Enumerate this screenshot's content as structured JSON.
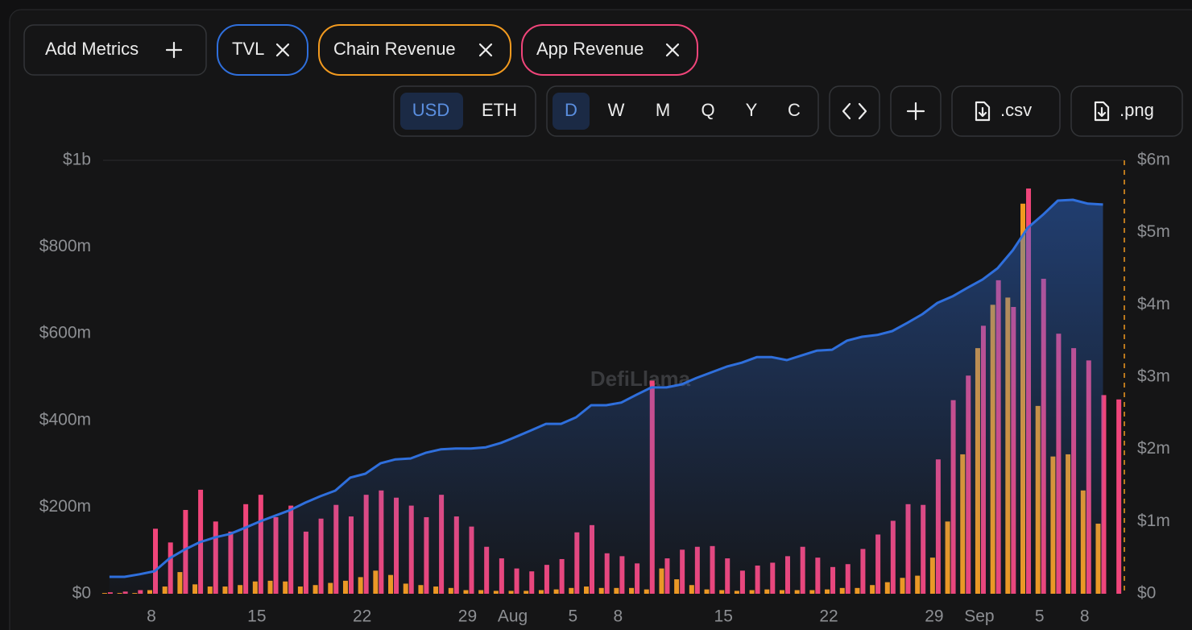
{
  "controls": {
    "add_metrics": "Add Metrics",
    "currency": [
      "USD",
      "ETH"
    ],
    "periods": [
      "D",
      "W",
      "M",
      "Q",
      "Y",
      "C"
    ],
    "downloads": [
      ".csv",
      ".png"
    ]
  },
  "chart_data": {
    "type": "bar-line",
    "watermark": "DefiLlama",
    "categories": [
      null,
      null,
      null,
      "8",
      null,
      null,
      null,
      null,
      null,
      null,
      "15",
      null,
      null,
      null,
      null,
      null,
      null,
      "22",
      null,
      null,
      null,
      null,
      null,
      null,
      "29",
      null,
      null,
      "Aug",
      null,
      null,
      null,
      "5",
      null,
      null,
      "8",
      null,
      null,
      null,
      null,
      null,
      null,
      "15",
      null,
      null,
      null,
      null,
      null,
      null,
      "22",
      null,
      null,
      null,
      null,
      null,
      null,
      "29",
      null,
      null,
      "Sep",
      null,
      null,
      null,
      "5",
      null,
      null,
      "8",
      null,
      null
    ],
    "series": [
      {
        "name": "TVL",
        "color": "#2f6fdc",
        "kind": "area",
        "values": [
          39,
          39,
          45,
          52,
          82,
          102,
          119,
          130,
          138,
          152,
          167,
          180,
          193,
          210,
          225,
          238,
          268,
          277,
          301,
          310,
          312,
          325,
          333,
          335,
          335,
          338,
          348,
          362,
          377,
          392,
          392,
          407,
          435,
          435,
          441,
          459,
          476,
          476,
          483,
          498,
          511,
          524,
          533,
          546,
          546,
          539,
          550,
          561,
          563,
          584,
          593,
          597,
          606,
          625,
          645,
          671,
          686,
          706,
          725,
          751,
          792,
          844,
          874,
          907,
          909,
          900,
          898,
          null
        ]
      },
      {
        "name": "Chain Revenue",
        "color": "#f29a1f",
        "kind": "bar",
        "axis": "y2",
        "values": [
          0.01,
          0.01,
          0.01,
          0.05,
          0.1,
          0.3,
          0.13,
          0.1,
          0.1,
          0.12,
          0.17,
          0.18,
          0.17,
          0.1,
          0.12,
          0.15,
          0.18,
          0.23,
          0.32,
          0.26,
          0.14,
          0.12,
          0.1,
          0.08,
          0.05,
          0.05,
          0.04,
          0.04,
          0.04,
          0.05,
          0.06,
          0.08,
          0.1,
          0.08,
          0.08,
          0.08,
          0.06,
          0.35,
          0.2,
          0.12,
          0.06,
          0.05,
          0.04,
          0.05,
          0.06,
          0.05,
          0.05,
          0.05,
          0.06,
          0.08,
          0.08,
          0.12,
          0.16,
          0.22,
          0.25,
          0.5,
          1.0,
          1.93,
          3.4,
          4.0,
          4.1,
          5.4,
          2.6,
          1.9,
          1.93,
          1.43,
          0.97,
          null
        ]
      },
      {
        "name": "App Revenue",
        "color": "#f0457a",
        "kind": "bar",
        "axis": "y2",
        "values": [
          0.02,
          0.03,
          0.05,
          0.9,
          0.71,
          1.16,
          1.44,
          1.0,
          0.86,
          1.24,
          1.37,
          1.06,
          1.22,
          0.86,
          1.04,
          1.23,
          1.07,
          1.37,
          1.43,
          1.33,
          1.22,
          1.06,
          1.37,
          1.07,
          0.93,
          0.65,
          0.49,
          0.35,
          0.31,
          0.4,
          0.48,
          0.85,
          0.95,
          0.56,
          0.52,
          0.42,
          2.95,
          0.49,
          0.61,
          0.65,
          0.66,
          0.49,
          0.32,
          0.39,
          0.43,
          0.52,
          0.65,
          0.5,
          0.37,
          0.41,
          0.62,
          0.82,
          1.01,
          1.24,
          1.23,
          1.86,
          2.68,
          3.02,
          3.71,
          4.34,
          3.97,
          5.61,
          4.36,
          3.6,
          3.4,
          3.23,
          2.75,
          2.69
        ]
      }
    ],
    "ylim": [
      0,
      1000
    ],
    "yticks": [
      {
        "value": 0,
        "label": "$0"
      },
      {
        "value": 200,
        "label": "$200m"
      },
      {
        "value": 400,
        "label": "$400m"
      },
      {
        "value": 600,
        "label": "$600m"
      },
      {
        "value": 800,
        "label": "$800m"
      },
      {
        "value": 1000,
        "label": "$1b"
      }
    ],
    "y2lim": [
      0,
      6
    ],
    "y2ticks": [
      {
        "value": 0,
        "label": "$0"
      },
      {
        "value": 1,
        "label": "$1m"
      },
      {
        "value": 2,
        "label": "$2m"
      },
      {
        "value": 3,
        "label": "$3m"
      },
      {
        "value": 4,
        "label": "$4m"
      },
      {
        "value": 5,
        "label": "$5m"
      },
      {
        "value": 6,
        "label": "$6m"
      }
    ]
  }
}
